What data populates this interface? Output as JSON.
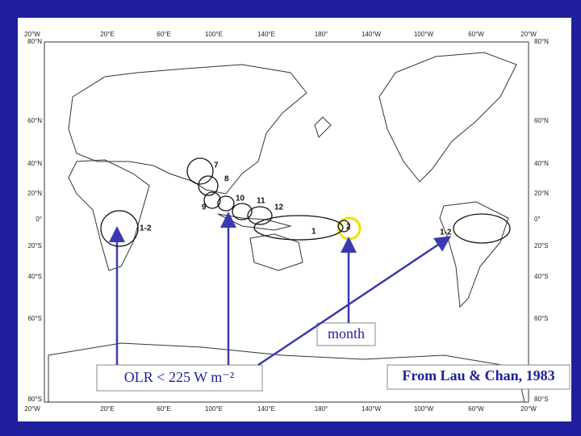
{
  "map": {
    "longitude_labels": [
      "20°W",
      "20°E",
      "60°E",
      "100°E",
      "140°E",
      "180°",
      "140°W",
      "100°W",
      "60°W",
      "20°W"
    ],
    "latitude_labels": [
      "80°N",
      "60°N",
      "40°N",
      "20°N",
      "0°",
      "20°S",
      "40°S",
      "60°S",
      "80°S"
    ],
    "regions": [
      {
        "label": "1-2"
      },
      {
        "label": "7"
      },
      {
        "label": "8"
      },
      {
        "label": "9"
      },
      {
        "label": "10"
      },
      {
        "label": "11"
      },
      {
        "label": "12"
      },
      {
        "label": "1"
      },
      {
        "label": "2"
      },
      {
        "label": "1-2"
      }
    ]
  },
  "annotations": {
    "month": "month",
    "threshold": "OLR < 225 W m⁻²",
    "source": "From Lau & Chan, 1983"
  }
}
